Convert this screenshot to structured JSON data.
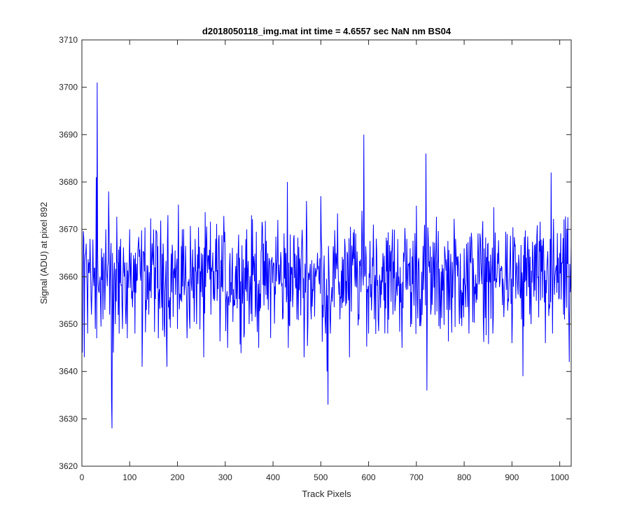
{
  "chart_data": {
    "type": "line",
    "title": "d2018050118_img.mat int time = 4.6557 sec  NaN nm BS04",
    "xlabel": "Track Pixels",
    "ylabel": "Signal (ADU) at pixel 892",
    "xlim": [
      0,
      1024
    ],
    "ylim": [
      3620,
      3710
    ],
    "xticks": [
      0,
      100,
      200,
      300,
      400,
      500,
      600,
      700,
      800,
      900,
      1000
    ],
    "yticks": [
      3620,
      3630,
      3640,
      3650,
      3660,
      3670,
      3680,
      3690,
      3700,
      3710
    ],
    "grid": false,
    "box": true,
    "series": [
      {
        "color": "#0000ff",
        "baseline": 3660,
        "noise_range": [
          3643,
          3677
        ],
        "x": [
          1,
          4,
          5,
          8,
          9,
          12,
          15,
          17,
          20,
          22,
          25,
          28,
          30,
          31,
          32,
          33,
          35,
          38,
          41,
          44,
          46,
          48,
          50,
          53,
          56,
          58,
          60,
          62,
          63,
          64,
          66,
          68,
          70,
          74,
          78,
          81,
          85,
          90,
          95,
          100,
          105,
          111,
          118,
          126,
          130,
          140,
          148,
          150,
          160,
          170,
          178,
          180,
          183,
          190,
          200,
          210,
          220,
          228,
          230,
          240,
          250,
          255,
          260,
          270,
          280,
          290,
          300,
          305,
          310,
          320,
          330,
          340,
          345,
          350,
          360,
          370,
          380,
          390,
          400,
          410,
          420,
          430,
          432,
          440,
          450,
          460,
          465,
          470,
          480,
          490,
          500,
          510,
          513,
          515,
          517,
          520,
          525,
          530,
          540,
          550,
          560,
          570,
          580,
          590,
          592,
          600,
          610,
          620,
          630,
          640,
          650,
          660,
          670,
          680,
          690,
          700,
          710,
          720,
          722,
          725,
          730,
          740,
          750,
          760,
          770,
          780,
          790,
          800,
          810,
          820,
          830,
          840,
          850,
          860,
          870,
          880,
          890,
          900,
          910,
          920,
          923,
          930,
          940,
          950,
          960,
          970,
          980,
          982,
          985,
          990,
          1000,
          1010,
          1015,
          1020,
          1024
        ],
        "y": [
          3644,
          3668,
          3643,
          3665,
          3667,
          3648,
          3663,
          3668,
          3652,
          3660,
          3658,
          3649,
          3681,
          3647,
          3701,
          3665,
          3657,
          3660,
          3666,
          3651,
          3665,
          3653,
          3670,
          3658,
          3678,
          3652,
          3664,
          3634,
          3628,
          3665,
          3644,
          3663,
          3650,
          3663,
          3648,
          3668,
          3649,
          3663,
          3647,
          3670,
          3657,
          3648,
          3667,
          3641,
          3665,
          3652,
          3664,
          3670,
          3647,
          3667,
          3641,
          3673,
          3651,
          3665,
          3649,
          3670,
          3647,
          3664,
          3657,
          3650,
          3665,
          3643,
          3667,
          3652,
          3668,
          3654,
          3662,
          3645,
          3665,
          3654,
          3664,
          3648,
          3670,
          3650,
          3663,
          3645,
          3667,
          3653,
          3662,
          3672,
          3651,
          3680,
          3645,
          3662,
          3651,
          3667,
          3643,
          3676,
          3651,
          3660,
          3677,
          3648,
          3640,
          3633,
          3662,
          3648,
          3658,
          3666,
          3651,
          3668,
          3643,
          3670,
          3651,
          3690,
          3660,
          3648,
          3671,
          3651,
          3665,
          3648,
          3670,
          3656,
          3645,
          3668,
          3650,
          3675,
          3651,
          3686,
          3636,
          3668,
          3652,
          3663,
          3649,
          3665,
          3653,
          3667,
          3650,
          3666,
          3648,
          3660,
          3665,
          3651,
          3667,
          3648,
          3665,
          3654,
          3669,
          3646,
          3663,
          3651,
          3639,
          3664,
          3650,
          3667,
          3655,
          3646,
          3668,
          3682,
          3648,
          3660,
          3665,
          3651,
          3670,
          3642,
          3667
        ]
      }
    ]
  }
}
